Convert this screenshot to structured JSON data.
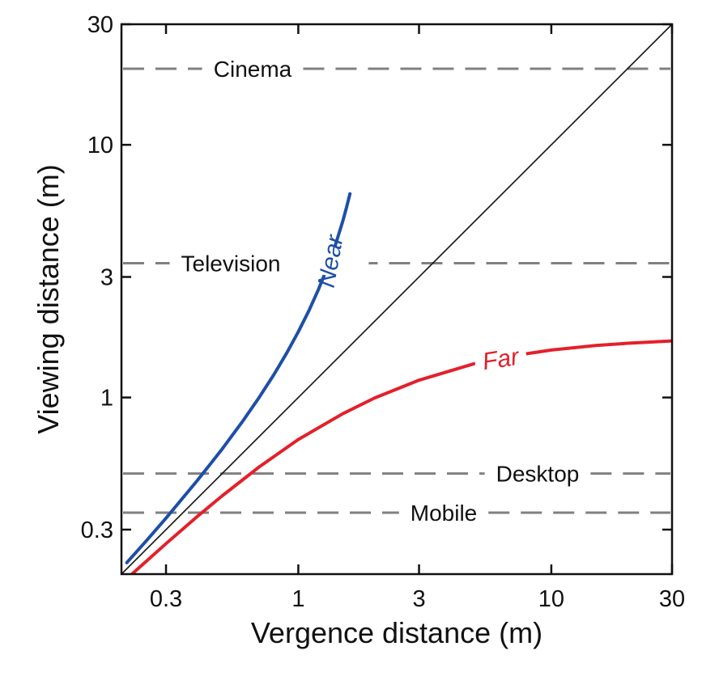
{
  "chart_data": {
    "type": "line",
    "title": "",
    "xlabel": "Vergence distance (m)",
    "ylabel": "Viewing distance (m)",
    "xscale": "log",
    "yscale": "log",
    "xlim": [
      0.2,
      30
    ],
    "ylim": [
      0.2,
      30
    ],
    "grid": false,
    "legend": "none",
    "x_ticks": [
      {
        "value": 0.3,
        "label": "0.3"
      },
      {
        "value": 1,
        "label": "1"
      },
      {
        "value": 3,
        "label": "3"
      },
      {
        "value": 10,
        "label": "10"
      },
      {
        "value": 30,
        "label": "30"
      }
    ],
    "y_ticks": [
      {
        "value": 0.3,
        "label": "0.3"
      },
      {
        "value": 1,
        "label": "1"
      },
      {
        "value": 3,
        "label": "3"
      },
      {
        "value": 10,
        "label": "10"
      },
      {
        "value": 30,
        "label": "30"
      }
    ],
    "reference_lines": [
      {
        "label": "Cinema",
        "y": 20
      },
      {
        "label": "Television",
        "y": 3.4
      },
      {
        "label": "Desktop",
        "y": 0.5
      },
      {
        "label": "Mobile",
        "y": 0.35
      }
    ],
    "series": [
      {
        "name": "Near",
        "color": "#1d4fa6",
        "x": [
          0.21,
          0.25,
          0.3,
          0.4,
          0.5,
          0.6,
          0.7,
          0.8,
          0.9,
          1.0,
          1.1,
          1.2,
          1.3,
          1.4,
          1.5,
          1.55,
          1.6
        ],
        "y": [
          0.222,
          0.27,
          0.333,
          0.471,
          0.625,
          0.8,
          1.0,
          1.23,
          1.5,
          1.82,
          2.2,
          2.67,
          3.25,
          4.0,
          5.0,
          5.64,
          6.4
        ]
      },
      {
        "name": "",
        "color": "#111111",
        "x": [
          0.2,
          30
        ],
        "y": [
          0.2,
          30
        ]
      },
      {
        "name": "Far",
        "color": "#e3202b",
        "x": [
          0.22,
          0.3,
          0.4,
          0.5,
          0.7,
          1.0,
          1.5,
          2.0,
          3.0,
          5.0,
          7.0,
          10.0,
          15.0,
          20.0,
          30.0
        ],
        "y": [
          0.2,
          0.264,
          0.339,
          0.408,
          0.531,
          0.682,
          0.863,
          0.995,
          1.171,
          1.364,
          1.461,
          1.541,
          1.606,
          1.639,
          1.674
        ]
      }
    ]
  }
}
